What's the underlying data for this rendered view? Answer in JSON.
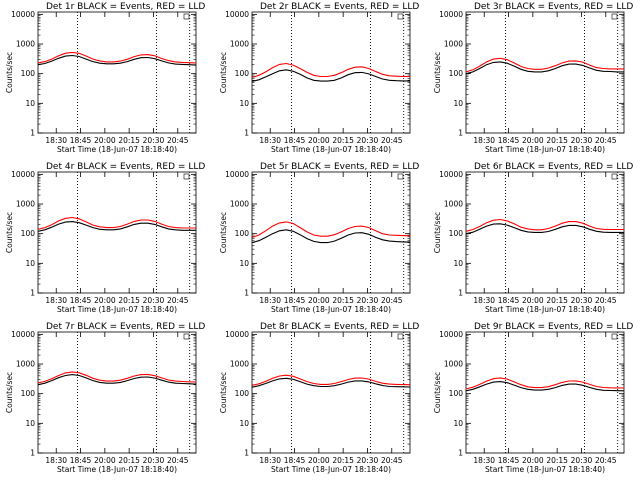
{
  "chart_data": [
    {
      "type": "line",
      "title": "Det 1r BLACK = Events, RED = LLD",
      "xlabel": "Start Time (18-Jun-07 18:18:40)",
      "ylabel": "Counts/sec",
      "yscale": "log",
      "ylim": [
        1,
        12000
      ],
      "x_ticks": [
        "18:30",
        "18:45",
        "20:00",
        "20:15",
        "20:30",
        "20:45"
      ],
      "y_ticks": [
        "1",
        "10",
        "100",
        "1000",
        "10000"
      ],
      "grid": false,
      "legend": "none",
      "vlines": [
        0.25,
        0.75,
        0.96
      ],
      "series": [
        {
          "color": "#000000",
          "values": [
            200,
            220,
            265,
            330,
            390,
            410,
            380,
            310,
            255,
            225,
            215,
            215,
            225,
            255,
            305,
            345,
            350,
            320,
            270,
            230,
            210,
            205,
            200,
            195
          ]
        },
        {
          "color": "#ff0000",
          "values": [
            230,
            255,
            310,
            400,
            490,
            520,
            485,
            395,
            310,
            270,
            250,
            250,
            265,
            305,
            375,
            430,
            440,
            400,
            325,
            275,
            250,
            240,
            235,
            230
          ]
        }
      ]
    },
    {
      "type": "line",
      "title": "Det 2r BLACK = Events, RED = LLD",
      "xlabel": "Start Time (18-Jun-07 18:18:40)",
      "ylabel": "Counts/sec",
      "yscale": "log",
      "ylim": [
        1,
        12000
      ],
      "x_ticks": [
        "18:30",
        "18:45",
        "20:00",
        "20:15",
        "20:30",
        "20:45"
      ],
      "y_ticks": [
        "1",
        "10",
        "100",
        "1000",
        "10000"
      ],
      "grid": false,
      "legend": "none",
      "vlines": [
        0.25,
        0.75,
        0.96
      ],
      "series": [
        {
          "color": "#000000",
          "values": [
            55,
            62,
            78,
            100,
            125,
            135,
            120,
            95,
            72,
            60,
            56,
            56,
            60,
            72,
            92,
            108,
            110,
            98,
            80,
            66,
            60,
            58,
            57,
            56
          ]
        },
        {
          "color": "#ff0000",
          "values": [
            75,
            88,
            115,
            160,
            205,
            220,
            195,
            150,
            110,
            88,
            80,
            80,
            88,
            108,
            140,
            165,
            170,
            150,
            118,
            95,
            85,
            82,
            80,
            80
          ]
        }
      ]
    },
    {
      "type": "line",
      "title": "Det 3r BLACK = Events, RED = LLD",
      "xlabel": "Start Time (18-Jun-07 18:18:40)",
      "ylabel": "Counts/sec",
      "yscale": "log",
      "ylim": [
        1,
        12000
      ],
      "x_ticks": [
        "18:30",
        "18:45",
        "20:00",
        "20:15",
        "20:30",
        "20:45"
      ],
      "y_ticks": [
        "1",
        "10",
        "100",
        "1000",
        "10000"
      ],
      "grid": false,
      "legend": "none",
      "vlines": [
        0.25,
        0.75,
        0.96
      ],
      "series": [
        {
          "color": "#000000",
          "values": [
            100,
            115,
            150,
            200,
            240,
            250,
            225,
            180,
            140,
            120,
            115,
            115,
            125,
            150,
            185,
            210,
            210,
            190,
            155,
            130,
            120,
            118,
            115,
            115
          ]
        },
        {
          "color": "#ff0000",
          "values": [
            115,
            135,
            180,
            250,
            310,
            330,
            295,
            230,
            175,
            150,
            140,
            140,
            155,
            185,
            230,
            265,
            270,
            245,
            195,
            160,
            150,
            145,
            145,
            145
          ]
        }
      ]
    },
    {
      "type": "line",
      "title": "Det 4r BLACK = Events, RED = LLD",
      "xlabel": "Start Time (18-Jun-07 18:18:40)",
      "ylabel": "Counts/sec",
      "yscale": "log",
      "ylim": [
        1,
        12000
      ],
      "x_ticks": [
        "18:30",
        "18:45",
        "20:00",
        "20:15",
        "20:30",
        "20:45"
      ],
      "y_ticks": [
        "1",
        "10",
        "100",
        "1000",
        "10000"
      ],
      "grid": false,
      "legend": "none",
      "vlines": [
        0.25,
        0.75,
        0.96
      ],
      "series": [
        {
          "color": "#000000",
          "values": [
            120,
            135,
            165,
            210,
            245,
            255,
            235,
            195,
            160,
            140,
            135,
            135,
            145,
            170,
            205,
            225,
            225,
            205,
            170,
            145,
            135,
            130,
            130,
            130
          ]
        },
        {
          "color": "#ff0000",
          "values": [
            140,
            160,
            200,
            270,
            330,
            350,
            315,
            250,
            195,
            170,
            160,
            160,
            175,
            210,
            260,
            290,
            290,
            260,
            210,
            175,
            160,
            155,
            155,
            155
          ]
        }
      ]
    },
    {
      "type": "line",
      "title": "Det 5r BLACK = Events, RED = LLD",
      "xlabel": "Start Time (18-Jun-07 18:18:40)",
      "ylabel": "Counts/sec",
      "yscale": "log",
      "ylim": [
        1,
        12000
      ],
      "x_ticks": [
        "18:30",
        "18:45",
        "20:00",
        "20:15",
        "20:30",
        "20:45"
      ],
      "y_ticks": [
        "1",
        "10",
        "100",
        "1000",
        "10000"
      ],
      "grid": false,
      "legend": "none",
      "vlines": [
        0.25,
        0.75,
        0.96
      ],
      "series": [
        {
          "color": "#000000",
          "values": [
            50,
            58,
            75,
            100,
            125,
            135,
            120,
            92,
            68,
            55,
            50,
            50,
            56,
            70,
            90,
            105,
            108,
            95,
            75,
            62,
            56,
            54,
            53,
            52
          ]
        },
        {
          "color": "#ff0000",
          "values": [
            75,
            90,
            125,
            180,
            230,
            250,
            220,
            160,
            115,
            90,
            82,
            82,
            92,
            115,
            150,
            175,
            180,
            160,
            125,
            100,
            90,
            88,
            86,
            85
          ]
        }
      ]
    },
    {
      "type": "line",
      "title": "Det 6r BLACK = Events, RED = LLD",
      "xlabel": "Start Time (18-Jun-07 18:18:40)",
      "ylabel": "Counts/sec",
      "yscale": "log",
      "ylim": [
        1,
        12000
      ],
      "x_ticks": [
        "18:30",
        "18:45",
        "20:00",
        "20:15",
        "20:30",
        "20:45"
      ],
      "y_ticks": [
        "1",
        "10",
        "100",
        "1000",
        "10000"
      ],
      "grid": false,
      "legend": "none",
      "vlines": [
        0.25,
        0.75,
        0.96
      ],
      "series": [
        {
          "color": "#000000",
          "values": [
            100,
            112,
            140,
            180,
            210,
            215,
            195,
            160,
            130,
            115,
            110,
            110,
            118,
            140,
            170,
            190,
            190,
            170,
            140,
            120,
            112,
            110,
            110,
            110
          ]
        },
        {
          "color": "#ff0000",
          "values": [
            120,
            138,
            175,
            235,
            285,
            300,
            270,
            215,
            165,
            145,
            135,
            135,
            150,
            180,
            225,
            255,
            255,
            225,
            180,
            150,
            140,
            138,
            138,
            138
          ]
        }
      ]
    },
    {
      "type": "line",
      "title": "Det 7r BLACK = Events, RED = LLD",
      "xlabel": "Start Time (18-Jun-07 18:18:40)",
      "ylabel": "Counts/sec",
      "yscale": "log",
      "ylim": [
        1,
        12000
      ],
      "x_ticks": [
        "18:30",
        "18:45",
        "20:00",
        "20:15",
        "20:30",
        "20:45"
      ],
      "y_ticks": [
        "1",
        "10",
        "100",
        "1000",
        "10000"
      ],
      "grid": false,
      "legend": "none",
      "vlines": [
        0.25,
        0.75,
        0.96
      ],
      "series": [
        {
          "color": "#000000",
          "values": [
            200,
            225,
            275,
            345,
            410,
            440,
            410,
            340,
            275,
            240,
            225,
            225,
            240,
            275,
            325,
            360,
            365,
            335,
            285,
            245,
            225,
            220,
            215,
            210
          ]
        },
        {
          "color": "#ff0000",
          "values": [
            230,
            260,
            320,
            410,
            500,
            540,
            505,
            415,
            330,
            285,
            265,
            265,
            285,
            330,
            395,
            440,
            445,
            405,
            340,
            290,
            265,
            258,
            252,
            250
          ]
        }
      ]
    },
    {
      "type": "line",
      "title": "Det 8r BLACK = Events, RED = LLD",
      "xlabel": "Start Time (18-Jun-07 18:18:40)",
      "ylabel": "Counts/sec",
      "yscale": "log",
      "ylim": [
        1,
        12000
      ],
      "x_ticks": [
        "18:30",
        "18:45",
        "20:00",
        "20:15",
        "20:30",
        "20:45"
      ],
      "y_ticks": [
        "1",
        "10",
        "100",
        "1000",
        "10000"
      ],
      "grid": false,
      "legend": "none",
      "vlines": [
        0.25,
        0.75,
        0.96
      ],
      "series": [
        {
          "color": "#000000",
          "values": [
            165,
            185,
            220,
            270,
            315,
            330,
            305,
            255,
            210,
            185,
            175,
            175,
            185,
            210,
            245,
            270,
            270,
            250,
            215,
            188,
            175,
            172,
            170,
            168
          ]
        },
        {
          "color": "#ff0000",
          "values": [
            190,
            215,
            260,
            330,
            395,
            420,
            385,
            315,
            255,
            220,
            205,
            205,
            220,
            255,
            300,
            335,
            338,
            310,
            260,
            225,
            210,
            205,
            202,
            200
          ]
        }
      ]
    },
    {
      "type": "line",
      "title": "Det 9r BLACK = Events, RED = LLD",
      "xlabel": "Start Time (18-Jun-07 18:18:40)",
      "ylabel": "Counts/sec",
      "yscale": "log",
      "ylim": [
        1,
        12000
      ],
      "x_ticks": [
        "18:30",
        "18:45",
        "20:00",
        "20:15",
        "20:30",
        "20:45"
      ],
      "y_ticks": [
        "1",
        "10",
        "100",
        "1000",
        "10000"
      ],
      "grid": false,
      "legend": "none",
      "vlines": [
        0.25,
        0.75,
        0.96
      ],
      "series": [
        {
          "color": "#000000",
          "values": [
            125,
            140,
            170,
            210,
            245,
            255,
            235,
            195,
            160,
            140,
            132,
            132,
            140,
            160,
            190,
            210,
            210,
            192,
            162,
            140,
            130,
            128,
            126,
            125
          ]
        },
        {
          "color": "#ff0000",
          "values": [
            145,
            165,
            205,
            265,
            320,
            340,
            310,
            250,
            200,
            170,
            160,
            160,
            172,
            200,
            240,
            268,
            270,
            245,
            205,
            175,
            162,
            158,
            156,
            155
          ]
        }
      ]
    }
  ]
}
